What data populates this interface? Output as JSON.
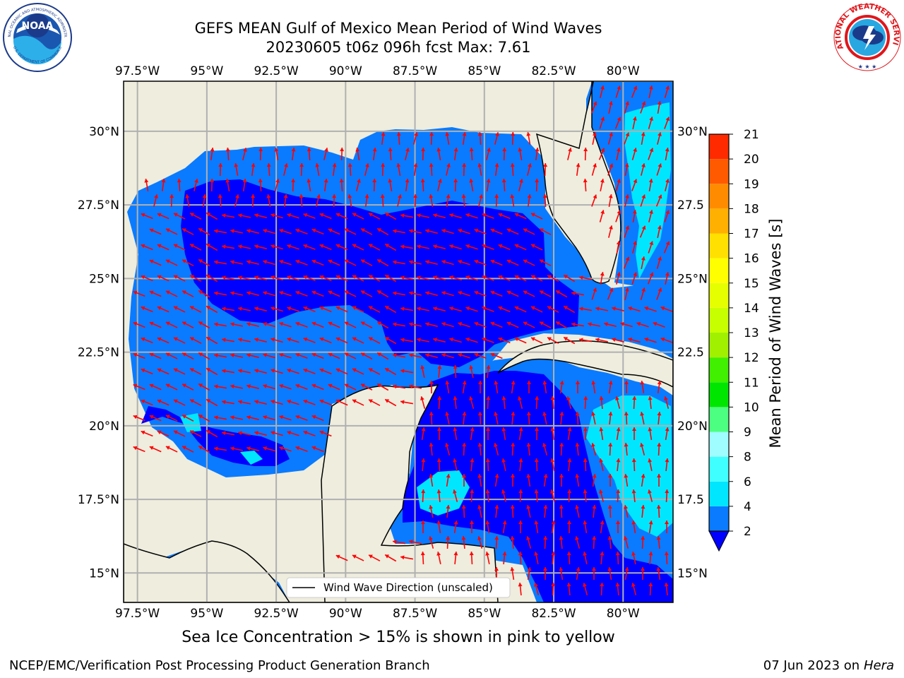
{
  "header": {
    "title_line1": "GEFS MEAN Gulf of Mexico Mean Period of Wind Waves",
    "title_line2": "20230605 t06z 096h fcst   Max: 7.61"
  },
  "logos": {
    "noaa_text": "NOAA",
    "noaa_ring_top": "NATIONAL OCEANIC AND ATMOSPHERIC ADMINISTRATION",
    "noaa_ring_bottom": "U.S. DEPARTMENT OF COMMERCE",
    "nws_ring": "NATIONAL WEATHER SERVICE"
  },
  "map": {
    "lon_labels": [
      "97.5°W",
      "95°W",
      "92.5°W",
      "90°W",
      "87.5°W",
      "85°W",
      "82.5°W",
      "80°W"
    ],
    "lon_values": [
      -97.5,
      -95,
      -92.5,
      -90,
      -87.5,
      -85,
      -82.5,
      -80
    ],
    "lat_labels": [
      "30°N",
      "27.5°N",
      "25°N",
      "22.5°N",
      "20°N",
      "17.5°N",
      "15°N"
    ],
    "lat_values": [
      30,
      27.5,
      25,
      22.5,
      20,
      17.5,
      15
    ],
    "right_lat_labels": [
      "30°N",
      "27.5",
      "25°N",
      "22.5",
      "20°N",
      "17.5",
      "15°N"
    ],
    "lon_range": [
      -98,
      -78.2
    ],
    "lat_range": [
      14.0,
      31.7
    ],
    "legend_label": "Wind Wave Direction (unscaled)",
    "colors": {
      "land": "#eeedde",
      "grid": "#b0b0b0",
      "arrow": "#ff0000",
      "coast": "#000000"
    }
  },
  "colorbar": {
    "label": "Mean Period of Wind Waves [s]",
    "ticks": [
      "2",
      "4",
      "6",
      "8",
      "9",
      "10",
      "11",
      "12",
      "13",
      "14",
      "15",
      "16",
      "17",
      "18",
      "19",
      "20",
      "21"
    ],
    "colors": [
      "#0a7bff",
      "#00e6ff",
      "#40ffff",
      "#9ffcff",
      "#4cff80",
      "#00e600",
      "#40f000",
      "#a0f000",
      "#c8ff00",
      "#e6ff00",
      "#ffff00",
      "#ffe000",
      "#ffb000",
      "#ff8c00",
      "#ff5a00",
      "#ff2a00"
    ],
    "under_color": "#0000ff",
    "top_color": "#ff0000"
  },
  "footer": {
    "note": "Sea Ice Concentration > 15% is shown in pink to yellow",
    "credit_left": "NCEP/EMC/Verification Post Processing Product Generation Branch",
    "date": "07 Jun 2023 on",
    "host": "Hera"
  }
}
